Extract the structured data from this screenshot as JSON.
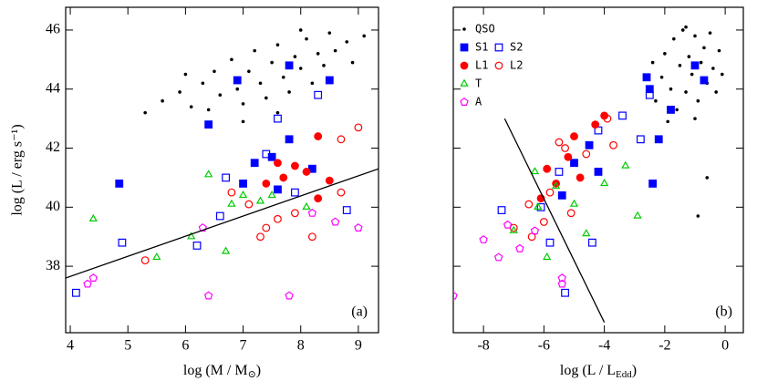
{
  "chart_data": [
    {
      "type": "scatter",
      "panel_label": "(a)",
      "xlabel": [
        "log (M / M",
        "⊙",
        ")"
      ],
      "ylabel": "log (L / erg s⁻¹)",
      "xlim": [
        3.92,
        9.35
      ],
      "ylim": [
        35.75,
        46.77
      ],
      "xticks": [
        4,
        5,
        6,
        7,
        8,
        9
      ],
      "yticks": [
        38,
        40,
        42,
        44,
        46
      ],
      "series": [
        {
          "color": "#000000",
          "marker": "dot",
          "filled": true,
          "x": [
            5.3,
            5.6,
            5.9,
            6.1,
            6.3,
            6.5,
            6.6,
            6.8,
            6.9,
            7.0,
            7.1,
            7.2,
            7.3,
            7.4,
            7.5,
            7.6,
            7.7,
            7.8,
            7.9,
            8.0,
            8.1,
            8.2,
            8.3,
            8.4,
            8.5,
            8.6,
            8.8,
            8.9,
            9.1,
            6.4,
            7.0,
            7.6,
            6.0,
            8.0
          ],
          "y": [
            43.2,
            43.6,
            43.9,
            43.4,
            44.2,
            44.6,
            43.8,
            45.0,
            44.0,
            43.5,
            44.6,
            45.3,
            44.2,
            43.7,
            44.9,
            45.5,
            44.4,
            43.9,
            45.1,
            44.7,
            45.7,
            44.2,
            45.2,
            44.8,
            45.9,
            45.3,
            45.6,
            44.9,
            45.8,
            43.3,
            42.9,
            43.2,
            44.5,
            46.0
          ]
        },
        {
          "color": "#0000ff",
          "marker": "square",
          "filled": true,
          "x": [
            4.85,
            6.9,
            7.8,
            6.4,
            7.8,
            7.2,
            7.5,
            8.2,
            7.0,
            7.6,
            8.5
          ],
          "y": [
            40.8,
            44.3,
            44.8,
            42.8,
            42.3,
            41.5,
            41.7,
            41.3,
            40.8,
            40.6,
            44.3
          ]
        },
        {
          "color": "#0000ff",
          "marker": "square",
          "filled": false,
          "x": [
            4.1,
            4.9,
            6.2,
            6.6,
            6.7,
            7.4,
            7.9,
            8.8,
            8.3,
            7.6
          ],
          "y": [
            37.1,
            38.8,
            38.7,
            39.7,
            41.0,
            41.8,
            40.5,
            39.9,
            43.8,
            43.0
          ]
        },
        {
          "color": "#ff0000",
          "marker": "circle",
          "filled": true,
          "x": [
            7.4,
            7.9,
            8.1,
            8.3,
            7.7,
            8.5,
            8.3,
            7.6
          ],
          "y": [
            40.8,
            41.4,
            41.2,
            42.4,
            41.0,
            40.9,
            40.3,
            41.5
          ]
        },
        {
          "color": "#ff0000",
          "marker": "circle",
          "filled": false,
          "x": [
            5.3,
            6.8,
            7.1,
            7.4,
            7.9,
            8.7,
            9.0,
            8.2,
            7.6,
            8.7,
            7.3
          ],
          "y": [
            38.2,
            40.5,
            40.1,
            39.3,
            39.8,
            42.3,
            42.7,
            39.0,
            39.6,
            40.5,
            39.0
          ]
        },
        {
          "color": "#00cc00",
          "marker": "triangle",
          "filled": false,
          "x": [
            4.4,
            5.5,
            6.1,
            6.4,
            6.8,
            7.5,
            8.1,
            7.3,
            7.0,
            6.7
          ],
          "y": [
            39.6,
            38.3,
            39.0,
            41.1,
            40.1,
            40.4,
            40.0,
            40.2,
            40.4,
            38.5
          ]
        },
        {
          "color": "#ff00ff",
          "marker": "pentagon",
          "filled": false,
          "x": [
            4.3,
            4.4,
            6.4,
            7.8,
            9.0,
            8.6,
            6.3,
            8.2
          ],
          "y": [
            37.4,
            37.6,
            37.0,
            37.0,
            39.3,
            39.5,
            39.3,
            39.8
          ]
        }
      ],
      "lines": [
        {
          "x": [
            3.92,
            9.35
          ],
          "y": [
            37.6,
            41.3
          ]
        }
      ]
    },
    {
      "type": "scatter",
      "panel_label": "(b)",
      "xlabel": [
        "log (L / L",
        "Edd",
        ")"
      ],
      "xlim": [
        -9.0,
        0.6
      ],
      "ylim": [
        35.75,
        46.77
      ],
      "xticks": [
        -8,
        -6,
        -4,
        -2,
        0
      ],
      "yticks": [
        38,
        40,
        42,
        44,
        46
      ],
      "legend": "upper left",
      "series": [
        {
          "name": "QSO",
          "color": "#000000",
          "marker": "dot",
          "filled": true,
          "x": [
            -2.3,
            -2.1,
            -2.0,
            -1.8,
            -1.7,
            -1.6,
            -1.5,
            -1.4,
            -1.3,
            -1.2,
            -1.1,
            -1.0,
            -0.9,
            -0.8,
            -0.7,
            -0.6,
            -0.5,
            -0.4,
            -0.3,
            -0.2,
            -0.1,
            -1.9,
            -1.0,
            -0.6,
            -0.9,
            -1.3,
            -2.4
          ],
          "y": [
            43.6,
            44.4,
            45.2,
            44.0,
            45.7,
            43.3,
            44.8,
            46.0,
            43.9,
            45.1,
            44.5,
            45.8,
            43.6,
            44.9,
            45.4,
            44.2,
            45.9,
            44.7,
            43.9,
            45.3,
            44.5,
            42.9,
            43.0,
            41.0,
            39.7,
            46.1,
            44.9
          ]
        },
        {
          "name": "S1",
          "color": "#0000ff",
          "marker": "square",
          "filled": true,
          "x": [
            -1.0,
            -0.7,
            -1.8,
            -2.2,
            -2.4,
            -2.6,
            -4.5,
            -5.0,
            -4.2,
            -5.4,
            -2.5
          ],
          "y": [
            44.8,
            44.3,
            43.3,
            42.3,
            40.8,
            44.4,
            42.1,
            41.5,
            41.2,
            40.4,
            44.0
          ]
        },
        {
          "name": "S2",
          "color": "#0000ff",
          "marker": "square",
          "filled": false,
          "x": [
            -7.4,
            -5.8,
            -5.3,
            -4.4,
            -6.1,
            -5.5,
            -4.2,
            -2.8,
            -3.4,
            -2.5
          ],
          "y": [
            39.9,
            38.8,
            37.1,
            38.8,
            40.0,
            41.2,
            42.6,
            42.3,
            43.1,
            43.8
          ]
        },
        {
          "name": "L1",
          "color": "#ff0000",
          "marker": "circle",
          "filled": true,
          "x": [
            -5.9,
            -5.0,
            -4.3,
            -4.0,
            -4.8,
            -5.6,
            -6.1,
            -5.2
          ],
          "y": [
            41.3,
            42.4,
            42.8,
            43.1,
            41.0,
            40.8,
            40.3,
            41.7
          ]
        },
        {
          "name": "L2",
          "color": "#ff0000",
          "marker": "circle",
          "filled": false,
          "x": [
            -7.0,
            -6.5,
            -6.0,
            -5.3,
            -4.6,
            -3.7,
            -5.8,
            -6.4,
            -5.1,
            -3.9,
            -5.5
          ],
          "y": [
            39.3,
            40.1,
            39.5,
            42.0,
            41.8,
            42.1,
            40.5,
            39.0,
            39.8,
            43.0,
            42.2
          ]
        },
        {
          "name": "T",
          "color": "#00cc00",
          "marker": "triangle",
          "filled": false,
          "x": [
            -7.0,
            -6.3,
            -5.6,
            -4.0,
            -3.3,
            -2.9,
            -5.9,
            -6.2,
            -5.0,
            -4.6
          ],
          "y": [
            39.2,
            41.2,
            40.7,
            40.8,
            41.4,
            39.7,
            38.3,
            40.0,
            40.1,
            39.1
          ]
        },
        {
          "name": "A",
          "color": "#ff00ff",
          "marker": "pentagon",
          "filled": false,
          "x": [
            -9.0,
            -8.0,
            -7.5,
            -6.8,
            -5.4,
            -5.4,
            -6.3,
            -7.2
          ],
          "y": [
            37.0,
            38.9,
            38.3,
            38.6,
            37.6,
            37.4,
            39.2,
            39.4
          ]
        }
      ],
      "lines": [
        {
          "x": [
            -7.3,
            -4.0
          ],
          "y": [
            43.0,
            36.1
          ]
        }
      ]
    }
  ]
}
